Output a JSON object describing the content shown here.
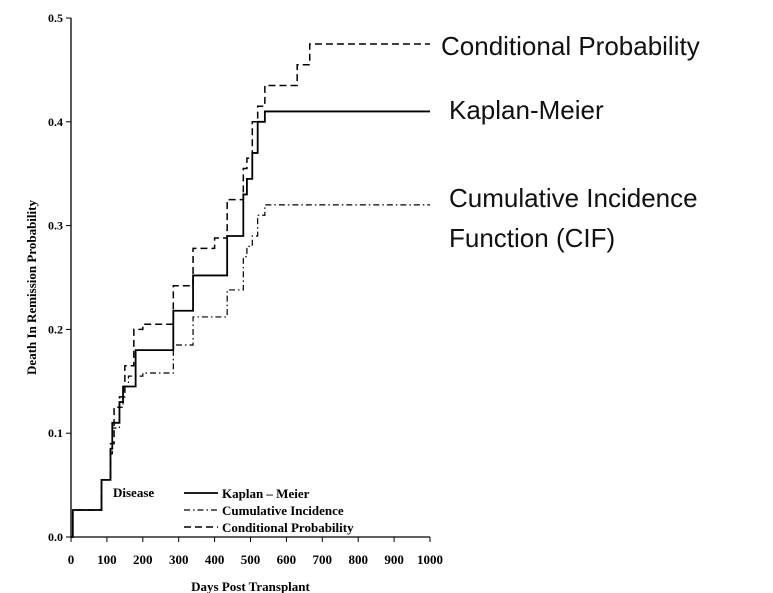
{
  "chart_data": {
    "type": "line",
    "xlabel": "Days Post Transplant",
    "ylabel": "Death In Remission Probability",
    "xlim": [
      0,
      1000
    ],
    "ylim": [
      0,
      0.5
    ],
    "x_ticks": [
      "0",
      "100",
      "200",
      "300",
      "400",
      "500",
      "600",
      "700",
      "800",
      "900",
      "1000"
    ],
    "y_ticks": [
      "0.0",
      "0.1",
      "0.2",
      "0.3",
      "0.4",
      "0.5"
    ],
    "grid": false,
    "legend": {
      "placement": "bottom-center",
      "group_label": "Disease",
      "entries": [
        "Kaplan – Meier",
        "Cumulative Incidence",
        "Conditional Probability"
      ]
    },
    "annotations": [
      {
        "lines": [
          "Conditional Probability"
        ],
        "series": "Conditional Probability"
      },
      {
        "lines": [
          "Kaplan-Meier"
        ],
        "series": "Kaplan – Meier"
      },
      {
        "lines": [
          "Cumulative Incidence",
          "Function (CIF)"
        ],
        "series": "Cumulative Incidence"
      }
    ],
    "series": [
      {
        "name": "Kaplan – Meier",
        "style": "solid",
        "color": "#000000",
        "x": [
          0,
          5,
          85,
          95,
          110,
          115,
          135,
          145,
          180,
          200,
          235,
          285,
          295,
          340,
          385,
          400,
          435,
          450,
          480,
          490,
          505,
          520,
          540,
          550,
          1000
        ],
        "y": [
          0.0,
          0.026,
          0.055,
          0.055,
          0.085,
          0.11,
          0.13,
          0.145,
          0.18,
          0.18,
          0.18,
          0.218,
          0.218,
          0.252,
          0.252,
          0.252,
          0.29,
          0.29,
          0.33,
          0.345,
          0.37,
          0.4,
          0.41,
          0.41,
          0.41
        ]
      },
      {
        "name": "Cumulative Incidence",
        "style": "dashdot",
        "color": "#000000",
        "x": [
          0,
          5,
          85,
          110,
          115,
          135,
          145,
          160,
          200,
          235,
          285,
          295,
          340,
          385,
          400,
          435,
          450,
          480,
          490,
          505,
          520,
          540,
          1000
        ],
        "y": [
          0.0,
          0.026,
          0.055,
          0.08,
          0.105,
          0.125,
          0.145,
          0.155,
          0.158,
          0.158,
          0.185,
          0.185,
          0.212,
          0.212,
          0.212,
          0.238,
          0.238,
          0.27,
          0.28,
          0.29,
          0.31,
          0.32,
          0.32
        ]
      },
      {
        "name": "Conditional Probability",
        "style": "dashed",
        "color": "#000000",
        "x": [
          0,
          5,
          85,
          110,
          120,
          135,
          150,
          175,
          200,
          235,
          285,
          295,
          340,
          385,
          400,
          435,
          450,
          480,
          490,
          505,
          520,
          540,
          600,
          630,
          665,
          680,
          1000
        ],
        "y": [
          0.0,
          0.026,
          0.055,
          0.09,
          0.125,
          0.135,
          0.165,
          0.2,
          0.205,
          0.205,
          0.242,
          0.242,
          0.278,
          0.278,
          0.288,
          0.325,
          0.325,
          0.355,
          0.365,
          0.4,
          0.415,
          0.435,
          0.435,
          0.455,
          0.475,
          0.475,
          0.475
        ]
      }
    ]
  }
}
